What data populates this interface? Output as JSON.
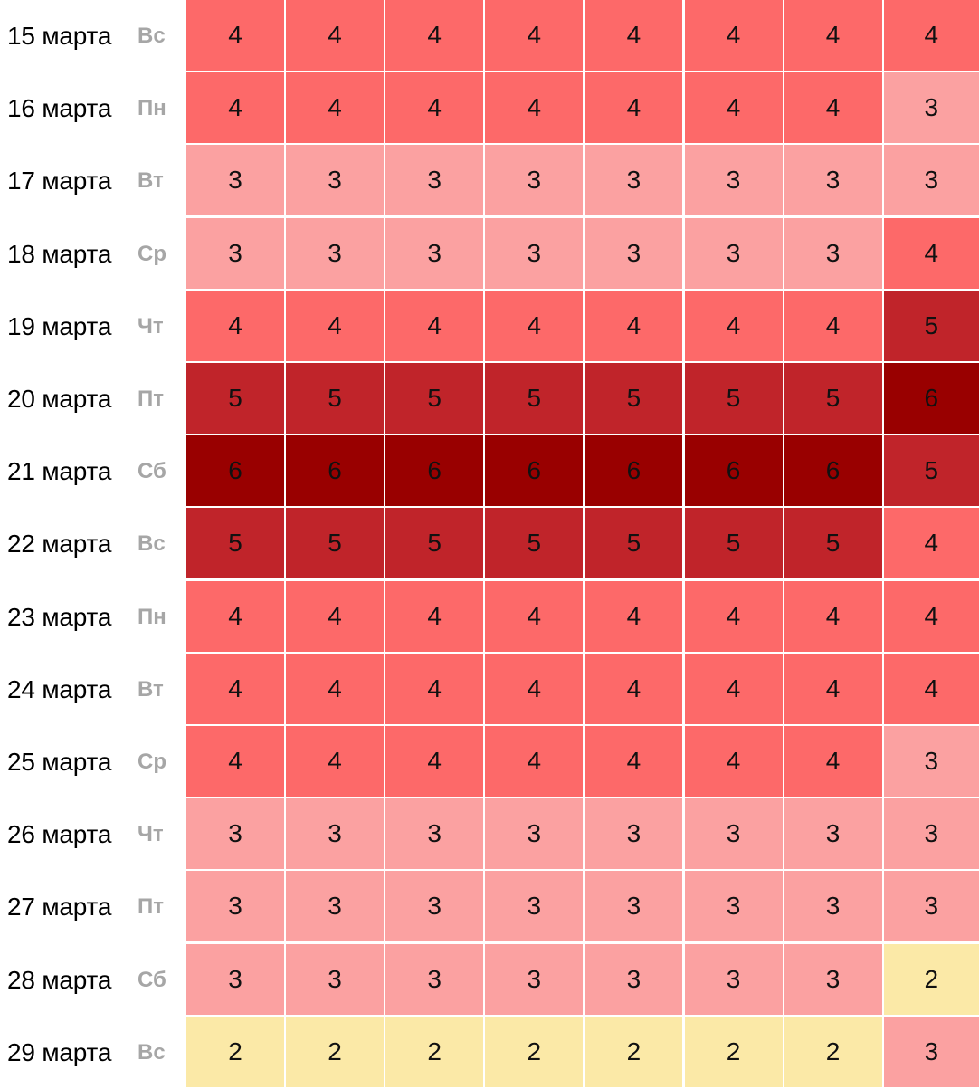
{
  "colors": {
    "2": "#fbe9a7",
    "3": "#fba1a1",
    "4": "#fd6969",
    "5": "#c0242a",
    "6": "#990000",
    "label_dow": "#a6a6a6",
    "background": "#ffffff"
  },
  "chart_data": {
    "type": "heatmap",
    "rows": [
      {
        "date": "15 марта",
        "dow": "Вс",
        "values": [
          4,
          4,
          4,
          4,
          4,
          4,
          4,
          4
        ]
      },
      {
        "date": "16 марта",
        "dow": "Пн",
        "values": [
          4,
          4,
          4,
          4,
          4,
          4,
          4,
          3
        ]
      },
      {
        "date": "17 марта",
        "dow": "Вт",
        "values": [
          3,
          3,
          3,
          3,
          3,
          3,
          3,
          3
        ]
      },
      {
        "date": "18 марта",
        "dow": "Ср",
        "values": [
          3,
          3,
          3,
          3,
          3,
          3,
          3,
          4
        ]
      },
      {
        "date": "19 марта",
        "dow": "Чт",
        "values": [
          4,
          4,
          4,
          4,
          4,
          4,
          4,
          5
        ]
      },
      {
        "date": "20 марта",
        "dow": "Пт",
        "values": [
          5,
          5,
          5,
          5,
          5,
          5,
          5,
          6
        ]
      },
      {
        "date": "21 марта",
        "dow": "Сб",
        "values": [
          6,
          6,
          6,
          6,
          6,
          6,
          6,
          5
        ]
      },
      {
        "date": "22 марта",
        "dow": "Вс",
        "values": [
          5,
          5,
          5,
          5,
          5,
          5,
          5,
          4
        ]
      },
      {
        "date": "23 марта",
        "dow": "Пн",
        "values": [
          4,
          4,
          4,
          4,
          4,
          4,
          4,
          4
        ]
      },
      {
        "date": "24 марта",
        "dow": "Вт",
        "values": [
          4,
          4,
          4,
          4,
          4,
          4,
          4,
          4
        ]
      },
      {
        "date": "25 марта",
        "dow": "Ср",
        "values": [
          4,
          4,
          4,
          4,
          4,
          4,
          4,
          3
        ]
      },
      {
        "date": "26 марта",
        "dow": "Чт",
        "values": [
          3,
          3,
          3,
          3,
          3,
          3,
          3,
          3
        ]
      },
      {
        "date": "27 марта",
        "dow": "Пт",
        "values": [
          3,
          3,
          3,
          3,
          3,
          3,
          3,
          3
        ]
      },
      {
        "date": "28 марта",
        "dow": "Сб",
        "values": [
          3,
          3,
          3,
          3,
          3,
          3,
          3,
          2
        ]
      },
      {
        "date": "29 марта",
        "dow": "Вс",
        "values": [
          2,
          2,
          2,
          2,
          2,
          2,
          2,
          3
        ]
      }
    ]
  }
}
